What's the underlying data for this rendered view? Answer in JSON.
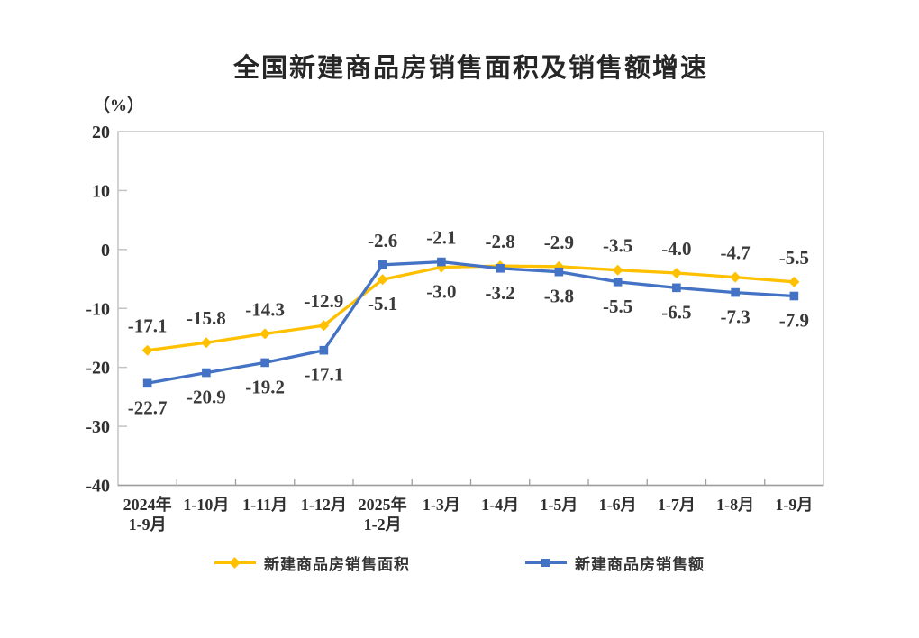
{
  "title": "全国新建商品房销售面积及销售额增速",
  "unit_label": "（%）",
  "colors": {
    "series_area": "#FFC000",
    "series_amount": "#4472C4",
    "axis_text": "#2f2f2f",
    "data_label_text": "#3a3a3a",
    "plot_border": "#c3c3c3",
    "bottom_axis": "#9e9e9e"
  },
  "chart_data": {
    "type": "line",
    "title": "全国新建商品房销售面积及销售额增速",
    "ylabel": "（%）",
    "xlabel": "",
    "grid": false,
    "legend_position": "bottom",
    "ylim": [
      -40,
      20
    ],
    "y_ticks": [
      20,
      10,
      0,
      -10,
      -20,
      -30,
      -40
    ],
    "categories": [
      "2024年\n1-9月",
      "1-10月",
      "1-11月",
      "1-12月",
      "2025年\n1-2月",
      "1-3月",
      "1-4月",
      "1-5月",
      "1-6月",
      "1-7月",
      "1-8月",
      "1-9月"
    ],
    "series": [
      {
        "name": "新建商品房销售面积",
        "marker": "diamond",
        "color": "#FFC000",
        "values": [
          -17.1,
          -15.8,
          -14.3,
          -12.9,
          -5.1,
          -3.0,
          -2.8,
          -2.9,
          -3.5,
          -4.0,
          -4.7,
          -5.5
        ],
        "labels": [
          "-17.1",
          "-15.8",
          "-14.3",
          "-12.9",
          "-5.1",
          "-3.0",
          "-2.8",
          "-2.9",
          "-3.5",
          "-4.0",
          "-4.7",
          "-5.5"
        ]
      },
      {
        "name": "新建商品房销售额",
        "marker": "square",
        "color": "#4472C4",
        "values": [
          -22.7,
          -20.9,
          -19.2,
          -17.1,
          -2.6,
          -2.1,
          -3.2,
          -3.8,
          -5.5,
          -6.5,
          -7.3,
          -7.9
        ],
        "labels": [
          "-22.7",
          "-20.9",
          "-19.2",
          "-17.1",
          "-2.6",
          "-2.1",
          "-3.2",
          "-3.8",
          "-5.5",
          "-6.5",
          "-7.3",
          "-7.9"
        ]
      }
    ]
  }
}
